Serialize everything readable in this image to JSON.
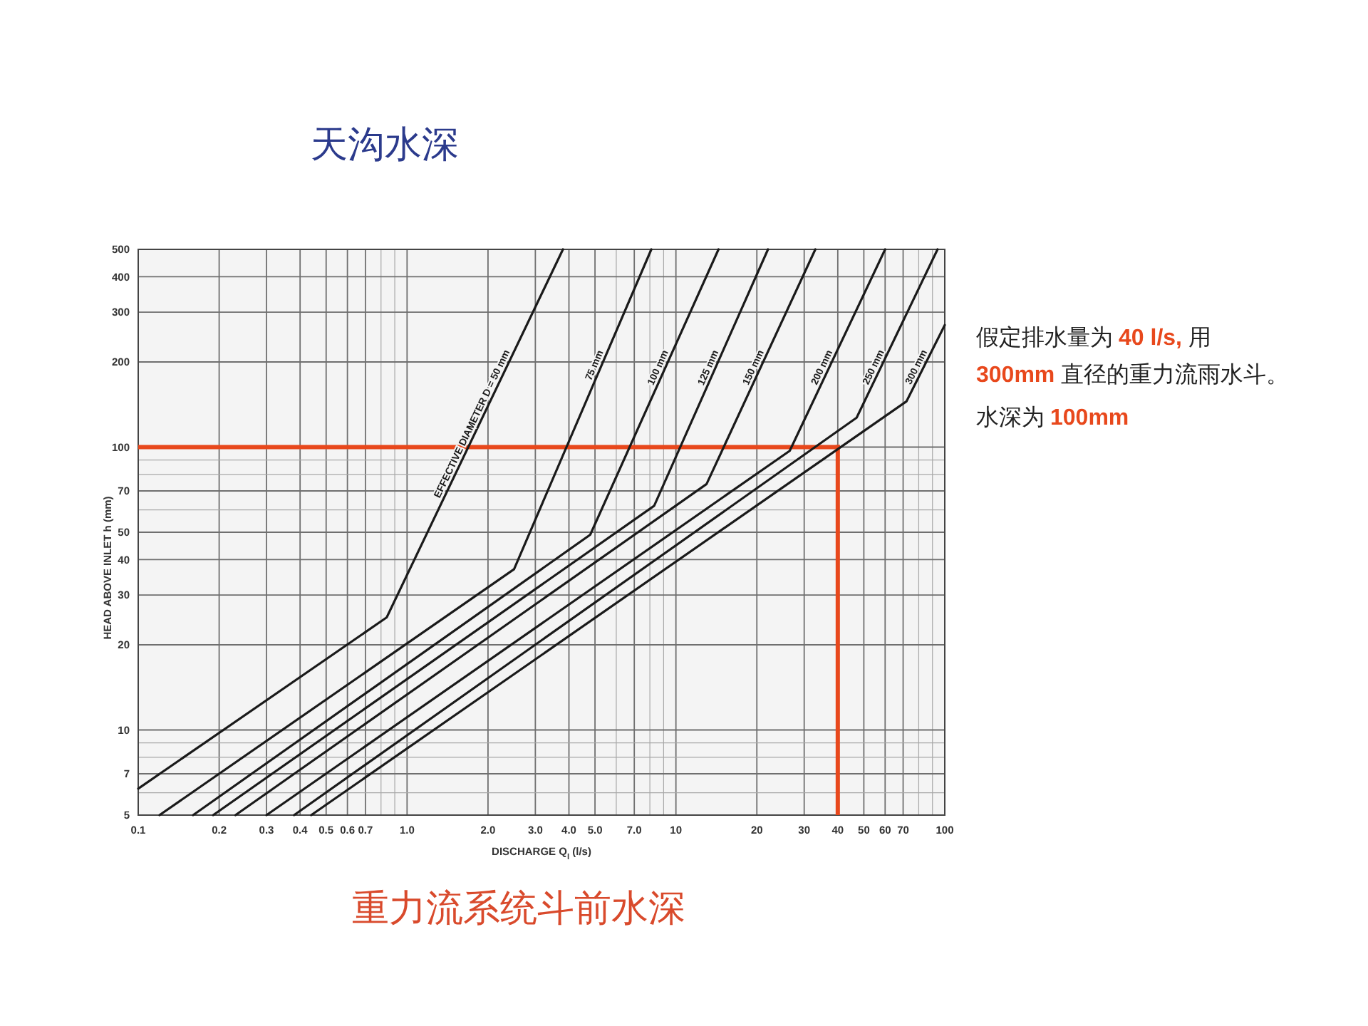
{
  "chart_data": {
    "type": "line",
    "title": "天沟水深",
    "xlabel": "DISCHARGE Q$_{l}$ (l/s)",
    "ylabel": "HEAD ABOVE INLET h (mm)",
    "log": "xy",
    "xlim": [
      0.1,
      100
    ],
    "ylim": [
      5,
      500
    ],
    "xticks": [
      0.1,
      0.2,
      0.3,
      0.4,
      0.5,
      0.6,
      0.7,
      {
        "value": 0.8,
        "label": null
      },
      {
        "value": 0.9,
        "label": null
      },
      {
        "value": 1,
        "label": "1.0"
      },
      {
        "value": 2,
        "label": "2.0"
      },
      {
        "value": 3,
        "label": "3.0"
      },
      {
        "value": 4,
        "label": "4.0"
      },
      {
        "value": 5,
        "label": "5.0"
      },
      {
        "value": 6,
        "label": null
      },
      {
        "value": 7,
        "label": "7.0"
      },
      {
        "value": 8,
        "label": null
      },
      {
        "value": 9,
        "label": null
      },
      10,
      20,
      30,
      40,
      50,
      60,
      70,
      {
        "value": 80,
        "label": null
      },
      {
        "value": 90,
        "label": null
      },
      100
    ],
    "yticks": [
      5,
      {
        "value": 6,
        "label": null
      },
      7,
      {
        "value": 8,
        "label": null
      },
      {
        "value": 9,
        "label": null
      },
      10,
      20,
      30,
      40,
      50,
      {
        "value": 60,
        "label": null
      },
      70,
      {
        "value": 80,
        "label": null
      },
      {
        "value": 90,
        "label": null
      },
      100,
      200,
      300,
      400,
      500
    ],
    "grid": true,
    "line_style": "solid",
    "series": [
      {
        "name": "EFFECTIVE DIAMETER D = 50 mm",
        "color": "#1a1a1a",
        "x": [
          0.1,
          0.84,
          3.8
        ],
        "values": [
          6.2,
          25,
          500
        ]
      },
      {
        "name": "75 mm",
        "color": "#1a1a1a",
        "x": [
          0.12,
          2.5,
          8.1
        ],
        "values": [
          5,
          37,
          500
        ]
      },
      {
        "name": "100 mm",
        "color": "#1a1a1a",
        "x": [
          0.16,
          4.8,
          14.4
        ],
        "values": [
          5,
          49,
          500
        ]
      },
      {
        "name": "125 mm",
        "color": "#1a1a1a",
        "x": [
          0.19,
          8.3,
          22
        ],
        "values": [
          5,
          62,
          500
        ]
      },
      {
        "name": "150 mm",
        "color": "#1a1a1a",
        "x": [
          0.23,
          13,
          33
        ],
        "values": [
          5,
          74,
          500
        ]
      },
      {
        "name": "200 mm",
        "color": "#1a1a1a",
        "x": [
          0.3,
          26.5,
          60
        ],
        "values": [
          5,
          97,
          500
        ]
      },
      {
        "name": "250 mm",
        "color": "#1a1a1a",
        "x": [
          0.38,
          47,
          94
        ],
        "values": [
          5,
          127,
          500
        ]
      },
      {
        "name": "300 mm",
        "color": "#1a1a1a",
        "x": [
          0.44,
          72,
          100
        ],
        "values": [
          5,
          145,
          270
        ]
      }
    ],
    "ref_lines": [
      {
        "axis": "y",
        "value": 100,
        "color": "#e8481c"
      },
      {
        "axis": "x",
        "value": 40,
        "color": "#e8481c"
      }
    ],
    "annotations": [
      "假定排水量为 40 l/s, 用 300mm 直径的重力流雨水斗。",
      "水深为 100mm",
      "重力流系统斗前水深"
    ]
  }
}
